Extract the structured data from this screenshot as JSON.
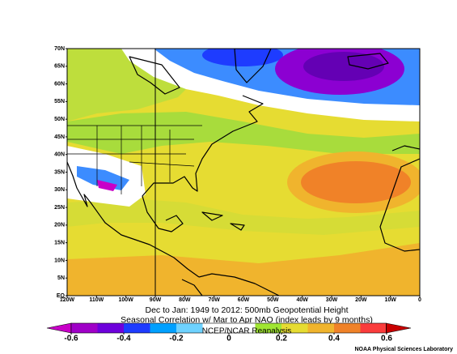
{
  "title_lines": [
    "Dec to Jan: 1949 to 2012: 500mb Geopotential Height",
    "Seasonal Correlation w/ Mar to Apr NAO (index leads by 9 months)"
  ],
  "credit_overlay": "NCEP/NCAR Reanalysis",
  "footer": "NOAA Physical Sciences Laboratory",
  "map": {
    "lat_ticks": [
      {
        "value": 70,
        "label": "70N"
      },
      {
        "value": 65,
        "label": "65N"
      },
      {
        "value": 60,
        "label": "60N"
      },
      {
        "value": 55,
        "label": "55N"
      },
      {
        "value": 50,
        "label": "50N"
      },
      {
        "value": 45,
        "label": "45N"
      },
      {
        "value": 40,
        "label": "40N"
      },
      {
        "value": 35,
        "label": "35N"
      },
      {
        "value": 30,
        "label": "30N"
      },
      {
        "value": 25,
        "label": "25N"
      },
      {
        "value": 20,
        "label": "20N"
      },
      {
        "value": 15,
        "label": "15N"
      },
      {
        "value": 10,
        "label": "10N"
      },
      {
        "value": 5,
        "label": "5N"
      },
      {
        "value": 0,
        "label": "EQ"
      }
    ],
    "lon_ticks": [
      {
        "value": -120,
        "label": "120W"
      },
      {
        "value": -110,
        "label": "110W"
      },
      {
        "value": -100,
        "label": "100W"
      },
      {
        "value": -90,
        "label": "90W"
      },
      {
        "value": -80,
        "label": "80W"
      },
      {
        "value": -70,
        "label": "70W"
      },
      {
        "value": -60,
        "label": "60W"
      },
      {
        "value": -50,
        "label": "50W"
      },
      {
        "value": -40,
        "label": "40W"
      },
      {
        "value": -30,
        "label": "30W"
      },
      {
        "value": -20,
        "label": "20W"
      },
      {
        "value": -10,
        "label": "10W"
      },
      0
    ]
  },
  "colorbar": {
    "ticks": [
      -0.6,
      -0.4,
      -0.2,
      0,
      0.2,
      0.4,
      0.6
    ]
  }
}
